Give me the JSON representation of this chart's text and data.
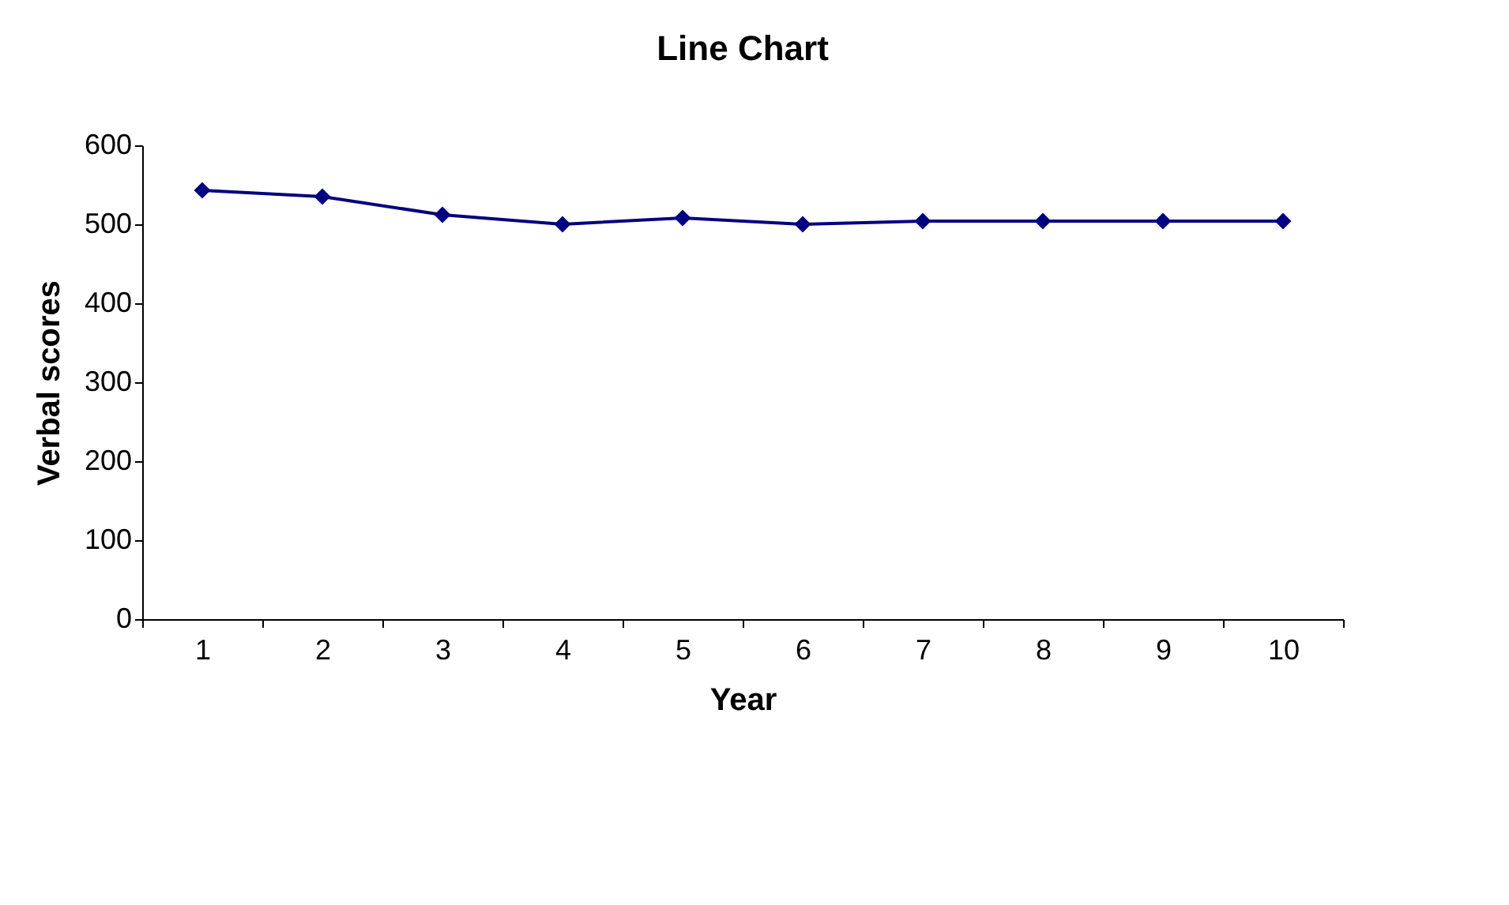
{
  "chart_data": {
    "type": "line",
    "title": "Line Chart",
    "xlabel": "Year",
    "ylabel": "Verbal scores",
    "categories": [
      "1",
      "2",
      "3",
      "4",
      "5",
      "6",
      "7",
      "8",
      "9",
      "10"
    ],
    "series": [
      {
        "color": "#000080",
        "values": [
          543,
          535,
          512,
          500,
          508,
          500,
          504,
          504,
          504,
          504
        ]
      }
    ],
    "ylim": [
      0,
      600
    ],
    "yticks": [
      0,
      100,
      200,
      300,
      400,
      500,
      600
    ],
    "grid": false,
    "marker": "diamond",
    "line_style": "solid"
  }
}
